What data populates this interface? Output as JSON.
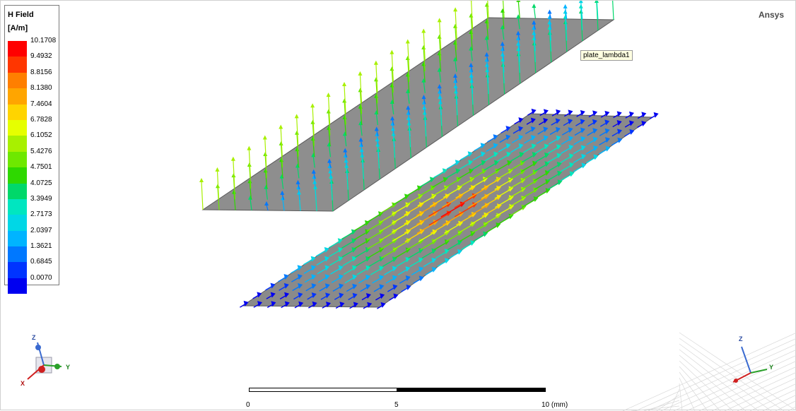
{
  "legend": {
    "title": "H Field",
    "unit": "[A/m]",
    "values": [
      "10.1708",
      "9.4932",
      "8.8156",
      "8.1380",
      "7.4604",
      "6.7828",
      "6.1052",
      "5.4276",
      "4.7501",
      "4.0725",
      "3.3949",
      "2.7173",
      "2.0397",
      "1.3621",
      "0.6845",
      "0.0070"
    ],
    "colors": [
      "#ff0000",
      "#ff3600",
      "#ff7f00",
      "#ffa500",
      "#ffd400",
      "#e6ff00",
      "#a8f000",
      "#6ee800",
      "#2ed800",
      "#00d86a",
      "#00e6c0",
      "#00d7e6",
      "#00b4ff",
      "#0078ff",
      "#0034ff",
      "#0000f0"
    ]
  },
  "brand": "Ansys",
  "tooltip": "plate_lambda1",
  "scale": {
    "labels": [
      "0",
      "5",
      "10 (mm)"
    ]
  },
  "triad_left": {
    "z": "Z",
    "y": "Y",
    "x": "X"
  },
  "triad_right": {
    "z": "Z",
    "y": "Y"
  }
}
